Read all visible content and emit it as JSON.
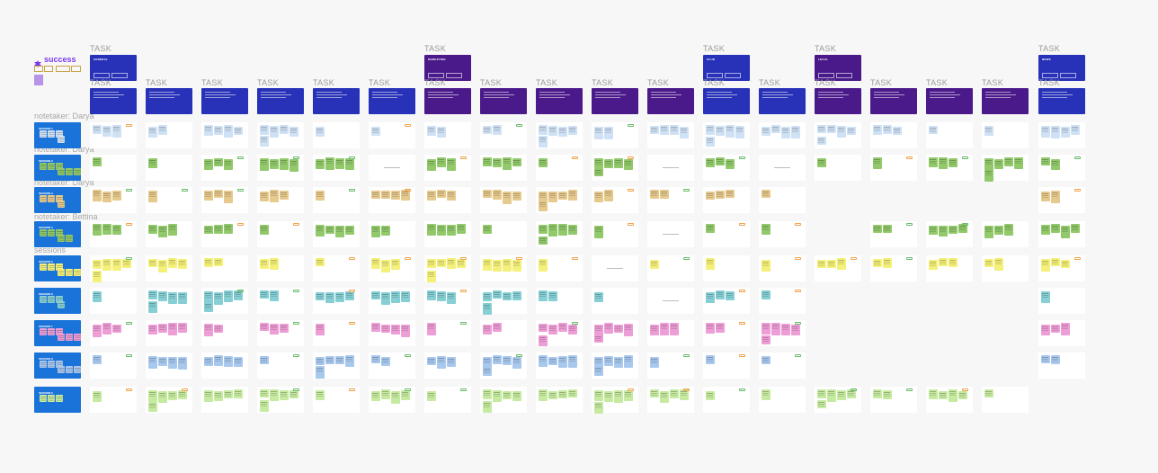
{
  "app": {
    "title": "success"
  },
  "colors": {
    "task_blue": "#2832b8",
    "task_purple": "#4a1a8a",
    "session_blue": "#1a73d9",
    "sticky_blue": "#cfe1f4",
    "sticky_green": "#92c96b",
    "sticky_tan": "#e6c98d",
    "sticky_yellow": "#f4f07a",
    "sticky_teal": "#86cfd4",
    "sticky_pink": "#ee9ed6",
    "sticky_lightblue": "#a8c8ee",
    "sticky_lightgreen": "#c6eaa0"
  },
  "labels": {
    "task": "TASK",
    "notetakers": [
      "notetaker: Darya",
      "notetaker: Darya",
      "notetaker: Darya",
      "notetaker: Bettina",
      "sessions"
    ]
  },
  "header_tasks": [
    {
      "label": "TASK",
      "title": "GENERAL",
      "color": "blue"
    },
    {
      "label": "TASK",
      "title": "MARKETING",
      "color": "purple"
    },
    {
      "label": "TASK",
      "title": "CLUB",
      "color": "blue"
    },
    {
      "label": "TASK",
      "title": "LEGAL",
      "color": "purple"
    },
    {
      "label": "TASK",
      "title": "NEWS",
      "color": "blue"
    }
  ],
  "column_tasks": [
    {
      "label": "TASK",
      "color": "blue"
    },
    {
      "label": "TASK",
      "color": "blue"
    },
    {
      "label": "TASK",
      "color": "blue"
    },
    {
      "label": "TASK",
      "color": "blue"
    },
    {
      "label": "TASK",
      "color": "blue"
    },
    {
      "label": "TASK",
      "color": "blue"
    },
    {
      "label": "TASK",
      "color": "purple"
    },
    {
      "label": "TASK",
      "color": "purple"
    },
    {
      "label": "TASK",
      "color": "purple"
    },
    {
      "label": "TASK",
      "color": "purple"
    },
    {
      "label": "TASK",
      "color": "purple"
    },
    {
      "label": "TASK",
      "color": "blue"
    },
    {
      "label": "TASK",
      "color": "blue"
    },
    {
      "label": "TASK",
      "color": "purple"
    },
    {
      "label": "TASK",
      "color": "purple"
    },
    {
      "label": "TASK",
      "color": "purple"
    },
    {
      "label": "TASK",
      "color": "purple"
    },
    {
      "label": "TASK",
      "color": "blue"
    }
  ],
  "sessions": [
    {
      "title": "SESSION 1",
      "sticky": "sticky_blue"
    },
    {
      "title": "SESSION 2",
      "sticky": "sticky_green"
    },
    {
      "title": "SESSION 3",
      "sticky": "sticky_tan"
    },
    {
      "title": "SESSION 4",
      "sticky": "sticky_green"
    },
    {
      "title": "SESSION 5",
      "sticky": "sticky_yellow"
    },
    {
      "title": "SESSION 6",
      "sticky": "sticky_teal"
    },
    {
      "title": "SESSION 7",
      "sticky": "sticky_pink"
    },
    {
      "title": "SESSION 8",
      "sticky": "sticky_lightblue"
    },
    {
      "title": "SESSION 9",
      "sticky": "sticky_lightgreen"
    }
  ]
}
